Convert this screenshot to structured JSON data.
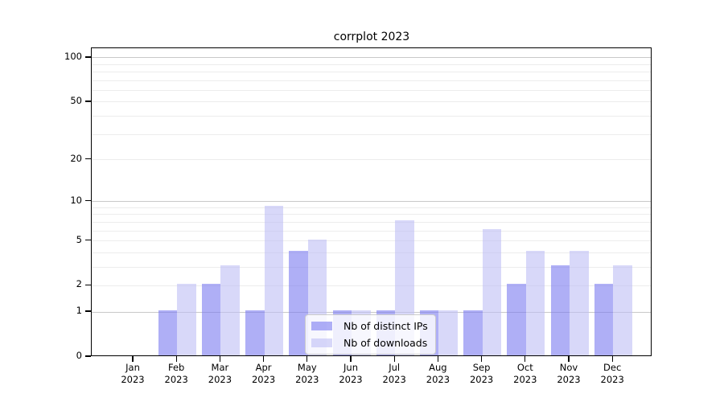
{
  "chart_data": {
    "type": "bar",
    "title": "corrplot 2023",
    "categories": [
      "Jan\n2023",
      "Feb\n2023",
      "Mar\n2023",
      "Apr\n2023",
      "May\n2023",
      "Jun\n2023",
      "Jul\n2023",
      "Aug\n2023",
      "Sep\n2023",
      "Oct\n2023",
      "Nov\n2023",
      "Dec\n2023"
    ],
    "series": [
      {
        "name": "Nb of distinct IPs",
        "color": "rgba(121,121,240,0.6)",
        "values": [
          0,
          1,
          2,
          1,
          4,
          1,
          1,
          1,
          1,
          2,
          3,
          2
        ]
      },
      {
        "name": "Nb of downloads",
        "color": "rgba(190,190,245,0.6)",
        "values": [
          0,
          2,
          3,
          9,
          5,
          1,
          7,
          1,
          6,
          4,
          4,
          3
        ]
      }
    ],
    "yscale": "log1p",
    "ylim": [
      0,
      116
    ],
    "yticks": [
      0,
      1,
      2,
      5,
      10,
      20,
      50,
      100
    ],
    "major_gridlines": [
      1,
      10,
      100
    ],
    "minor_gridlines": [
      2,
      3,
      4,
      5,
      6,
      7,
      8,
      9,
      20,
      30,
      40,
      50,
      60,
      70,
      80,
      90
    ],
    "grid": true,
    "legend_position": "lower center",
    "colors": {
      "major_grid": "#c9c9c9",
      "minor_grid": "#ececec",
      "spine": "#000000"
    }
  }
}
